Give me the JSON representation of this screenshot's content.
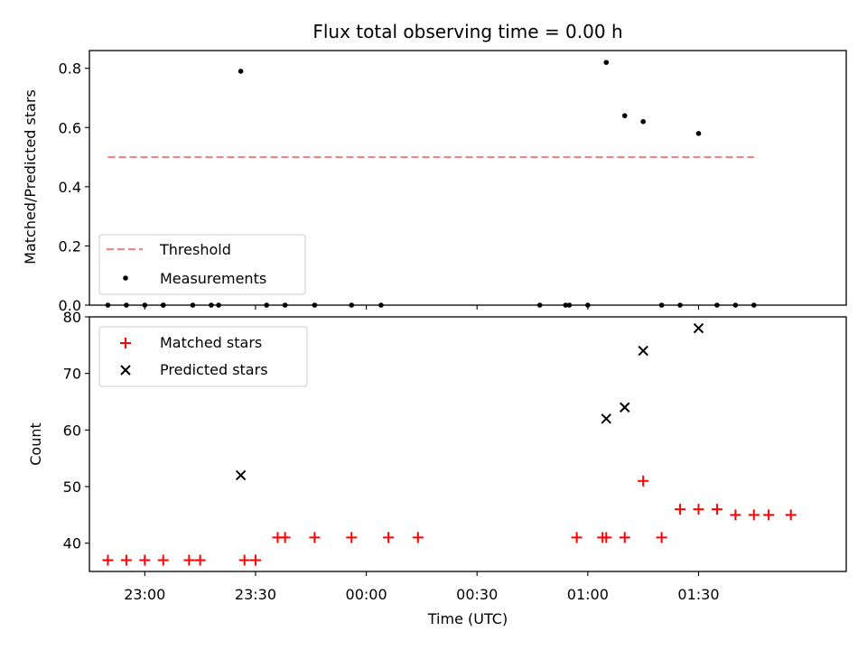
{
  "chart_data": [
    {
      "type": "scatter",
      "title": "Flux total observing time = 0.00 h",
      "xlabel": "",
      "ylabel": "Matched/Predicted stars",
      "ylim": [
        0.0,
        0.86
      ],
      "yticks": [
        "0.0",
        "0.2",
        "0.4",
        "0.6",
        "0.8"
      ],
      "grid": false,
      "legend_position": "lower-left",
      "series": [
        {
          "name": "Threshold",
          "style": "dashed-line",
          "color": "#ff7f7f",
          "x": [
            "22:50",
            "01:45"
          ],
          "y": [
            0.5,
            0.5
          ]
        },
        {
          "name": "Measurements",
          "style": "dot",
          "color": "#000000",
          "x": [
            "22:50",
            "22:55",
            "23:00",
            "23:05",
            "23:05",
            "23:13",
            "23:18",
            "23:20",
            "23:26",
            "23:33",
            "23:38",
            "23:46",
            "23:56",
            "00:04",
            "00:47",
            "00:54",
            "00:55",
            "01:00",
            "01:05",
            "01:10",
            "01:15",
            "01:20",
            "01:25",
            "01:30",
            "01:35",
            "01:40",
            "01:45"
          ],
          "y": [
            0.0,
            0.0,
            0.0,
            0.0,
            0.0,
            0.0,
            0.0,
            0.0,
            0.79,
            0.0,
            0.0,
            0.0,
            0.0,
            0.0,
            0.0,
            0.0,
            0.0,
            0.0,
            0.82,
            0.64,
            0.62,
            0.0,
            0.0,
            0.58,
            0.0,
            0.0,
            0.0
          ]
        }
      ]
    },
    {
      "type": "scatter",
      "title": "",
      "xlabel": "Time (UTC)",
      "ylabel": "Count",
      "ylim": [
        35,
        80
      ],
      "yticks": [
        "40",
        "50",
        "60",
        "70",
        "80"
      ],
      "xticks": [
        "23:00",
        "23:30",
        "00:00",
        "00:30",
        "01:00",
        "01:30"
      ],
      "grid": false,
      "legend_position": "upper-left",
      "series": [
        {
          "name": "Matched stars",
          "style": "plus",
          "color": "#ff0000",
          "x": [
            "22:50",
            "22:55",
            "23:00",
            "23:05",
            "23:12",
            "23:15",
            "23:27",
            "23:30",
            "23:36",
            "23:38",
            "23:46",
            "23:56",
            "00:06",
            "00:14",
            "00:57",
            "01:04",
            "01:05",
            "01:10",
            "01:15",
            "01:20",
            "01:25",
            "01:30",
            "01:35",
            "01:40",
            "01:45",
            "01:49",
            "01:55"
          ],
          "y": [
            37,
            37,
            37,
            37,
            37,
            37,
            37,
            37,
            41,
            41,
            41,
            41,
            41,
            41,
            41,
            41,
            41,
            41,
            51,
            41,
            46,
            46,
            46,
            45,
            45,
            45,
            45
          ]
        },
        {
          "name": "Predicted stars",
          "style": "cross",
          "color": "#000000",
          "x": [
            "23:26",
            "01:05",
            "01:10",
            "01:15",
            "01:30"
          ],
          "y": [
            52,
            62,
            64,
            74,
            78
          ]
        }
      ]
    }
  ]
}
